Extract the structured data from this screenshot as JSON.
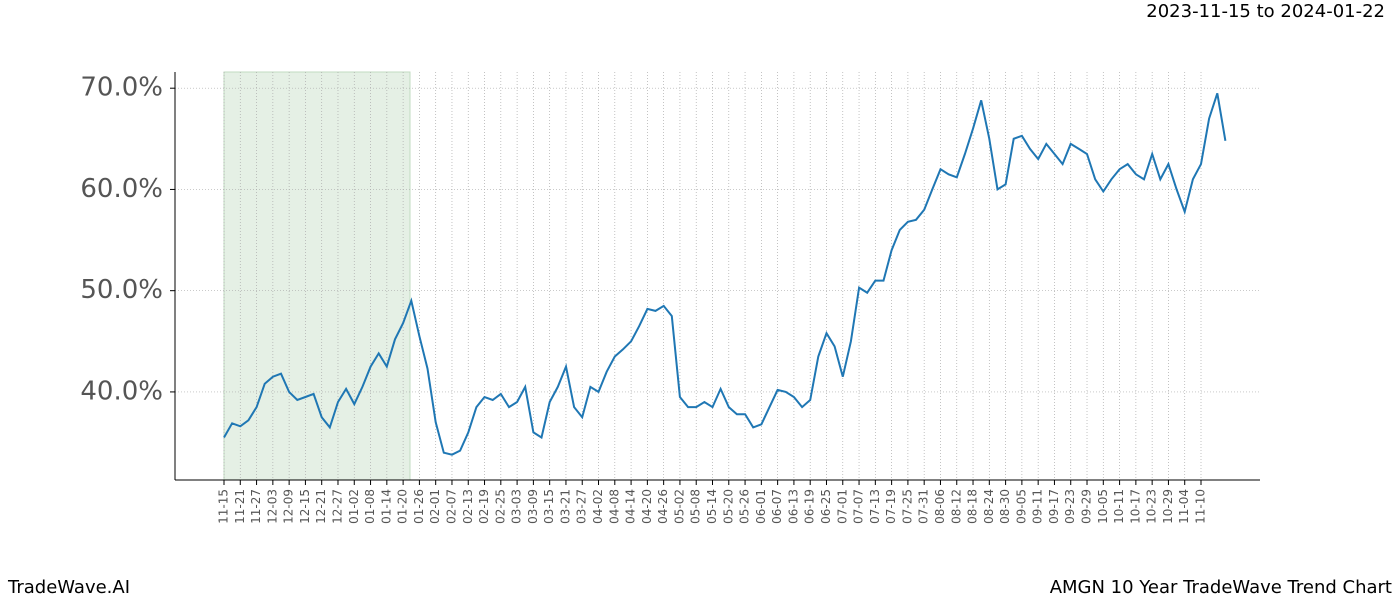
{
  "chart_data": {
    "type": "line",
    "title": "AMGN 10 Year TradeWave Trend Chart",
    "subtitle": "2023-11-15 to 2024-01-22",
    "brand": "TradeWave.AI",
    "categories": [
      "11-15",
      null,
      "11-21",
      null,
      "11-27",
      null,
      "12-03",
      null,
      "12-09",
      null,
      "12-15",
      null,
      "12-21",
      null,
      "12-27",
      null,
      "01-02",
      null,
      "01-08",
      null,
      "01-14",
      null,
      "01-20",
      null,
      "01-26",
      null,
      "02-01",
      null,
      "02-07",
      null,
      "02-13",
      null,
      "02-19",
      null,
      "02-25",
      null,
      "03-03",
      null,
      "03-09",
      null,
      "03-15",
      null,
      "03-21",
      null,
      "03-27",
      null,
      "04-02",
      null,
      "04-08",
      null,
      "04-14",
      null,
      "04-20",
      null,
      "04-26",
      null,
      "05-02",
      null,
      "05-08",
      null,
      "05-14",
      null,
      "05-20",
      null,
      "05-26",
      null,
      "06-01",
      null,
      "06-07",
      null,
      "06-13",
      null,
      "06-19",
      null,
      "06-25",
      null,
      "07-01",
      null,
      "07-07",
      null,
      "07-13",
      null,
      "07-19",
      null,
      "07-25",
      null,
      "07-31",
      null,
      "08-06",
      null,
      "08-12",
      null,
      "08-18",
      null,
      "08-24",
      null,
      "08-30",
      null,
      "09-05",
      null,
      "09-11",
      null,
      "09-17",
      null,
      "09-23",
      null,
      "09-29",
      null,
      "10-05",
      null,
      "10-11",
      null,
      "10-17",
      null,
      "10-23",
      null,
      "10-29",
      null,
      "11-04",
      null,
      "11-10",
      null,
      null,
      null
    ],
    "series": [
      {
        "color": "#1f77b4",
        "values": [
          35.5,
          36.9,
          36.6,
          37.2,
          38.5,
          40.8,
          41.5,
          41.8,
          40.0,
          39.2,
          39.5,
          39.8,
          37.5,
          36.5,
          39.0,
          40.3,
          38.8,
          40.5,
          42.5,
          43.8,
          42.5,
          45.2,
          46.8,
          49.0,
          45.5,
          42.3,
          37.0,
          34.0,
          33.8,
          34.2,
          36.0,
          38.5,
          39.5,
          39.2,
          39.8,
          38.5,
          39.0,
          40.5,
          36.0,
          35.5,
          39.0,
          40.5,
          42.5,
          38.5,
          37.5,
          40.5,
          40.0,
          42.0,
          43.5,
          44.2,
          45.0,
          46.5,
          48.2,
          48.0,
          48.5,
          47.5,
          39.5,
          38.5,
          38.5,
          39.0,
          38.5,
          40.3,
          38.5,
          37.8,
          37.8,
          36.5,
          36.8,
          38.5,
          40.2,
          40.0,
          39.5,
          38.5,
          39.2,
          43.5,
          45.8,
          44.5,
          41.5,
          45.0,
          50.3,
          49.8,
          51.0,
          51.0,
          54.0,
          56.0,
          56.8,
          57.0,
          58.0,
          60.0,
          62.0,
          61.5,
          61.2,
          63.5,
          66.0,
          68.8,
          65.0,
          60.0,
          60.5,
          65.0,
          65.3,
          64.0,
          63.0,
          64.5,
          63.5,
          62.5,
          64.5,
          64.0,
          63.5,
          61.0,
          59.8,
          61.0,
          62.0,
          62.5,
          61.5,
          61.0,
          63.5,
          61.0,
          62.5,
          60.0,
          57.8,
          61.0,
          62.5,
          67.0,
          69.5,
          64.8
        ]
      }
    ],
    "ylim": [
      31.3,
      71.6
    ],
    "yticks": [
      {
        "value": 40,
        "label": "40.0%"
      },
      {
        "value": 50,
        "label": "50.0%"
      },
      {
        "value": 60,
        "label": "60.0%"
      },
      {
        "value": 70,
        "label": "70.0%"
      }
    ],
    "grid": true
  }
}
